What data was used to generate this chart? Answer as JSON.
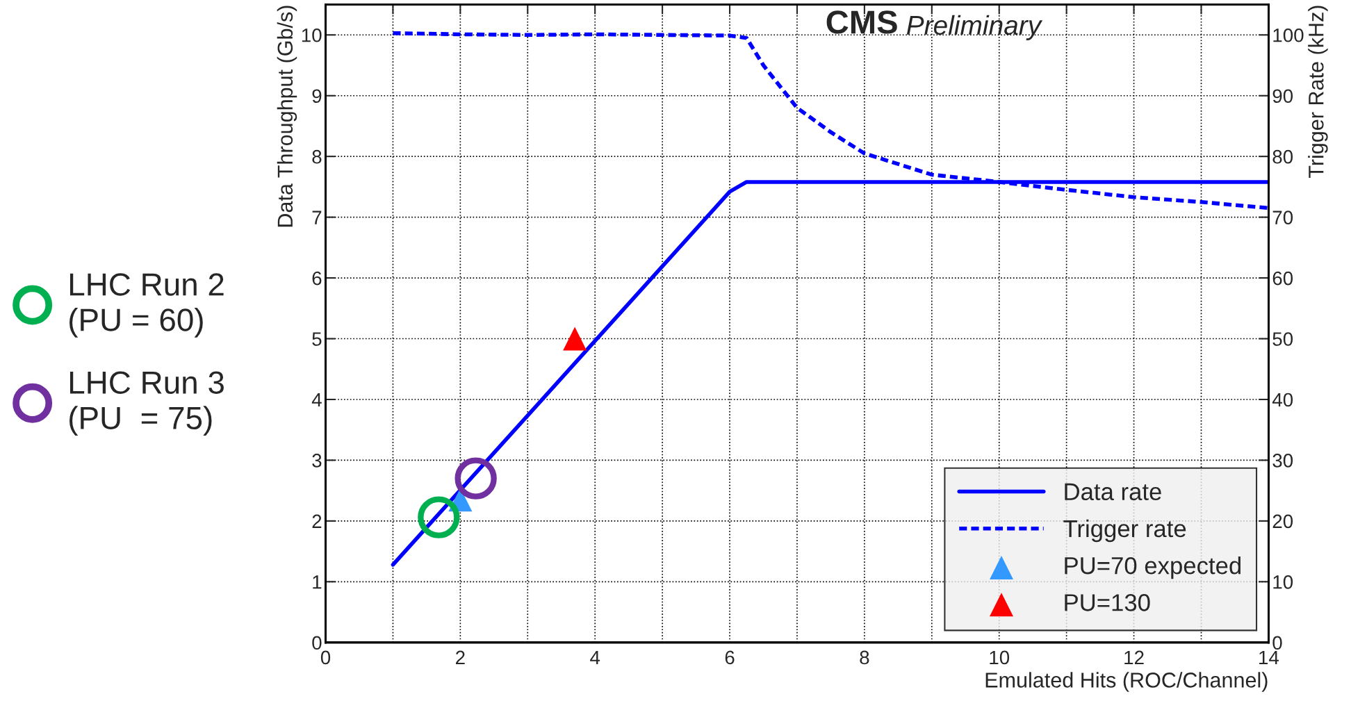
{
  "chart_data": {
    "type": "line",
    "title": "CMS",
    "subtitle": "Preliminary",
    "xlabel": "Emulated Hits (ROC/Channel)",
    "ylabel": "Data Throughput (Gb/s)",
    "y2label": "Trigger Rate (kHz)",
    "xlim": [
      0,
      14
    ],
    "xticks": [
      0,
      {
        "value": 1,
        "label": null
      },
      2,
      {
        "value": 3,
        "label": null
      },
      4,
      {
        "value": 5,
        "label": null
      },
      6,
      {
        "value": 7,
        "label": null
      },
      8,
      {
        "value": 9,
        "label": null
      },
      10,
      {
        "value": 11,
        "label": null
      },
      12,
      {
        "value": 13,
        "label": null
      },
      14
    ],
    "ylim": [
      0,
      10.5
    ],
    "yticks": [
      0,
      1,
      2,
      3,
      4,
      5,
      6,
      7,
      8,
      9,
      10
    ],
    "y2lim": [
      0,
      105
    ],
    "y2ticks": [
      0,
      10,
      20,
      30,
      40,
      50,
      60,
      70,
      80,
      90,
      100
    ],
    "grid": true,
    "legend": "bottom right",
    "series": [
      {
        "name": "Data rate",
        "type": "line",
        "color": "#0000ff",
        "line_style": "solid",
        "marker": "none",
        "x": [
          1,
          6,
          6.25,
          14
        ],
        "values": [
          1.28,
          7.42,
          7.58,
          7.58
        ]
      },
      {
        "name": "Trigger rate",
        "type": "line",
        "axis": "y2",
        "color": "#0000ff",
        "line_style": "dashed",
        "marker": "none",
        "x": [
          1,
          2,
          3,
          4,
          5,
          6,
          6.25,
          6.5,
          7,
          7.5,
          8,
          9,
          10,
          11,
          12,
          13,
          14
        ],
        "values": [
          100.3,
          100.1,
          100,
          100.1,
          100,
          99.9,
          99.5,
          95,
          88,
          84,
          80.5,
          77,
          75.8,
          74.5,
          73.3,
          72.5,
          71.5
        ]
      },
      {
        "name": "PU=70 expected",
        "type": "scatter",
        "color": "#3399ff",
        "marker": "triangle",
        "x": [
          2.0
        ],
        "values": [
          2.35
        ]
      },
      {
        "name": "PU=130",
        "type": "scatter",
        "color": "#ff0000",
        "marker": "triangle",
        "x": [
          3.7
        ],
        "values": [
          5.0
        ]
      },
      {
        "type": "scatter",
        "color": "#00b050",
        "marker": "circle",
        "x": [
          1.68
        ],
        "values": [
          2.06
        ]
      },
      {
        "type": "scatter",
        "color": "#7030a0",
        "marker": "circle",
        "x": [
          2.23
        ],
        "values": [
          2.7
        ]
      }
    ],
    "annotations": [
      "LHC Run 2\n(PU = 60)",
      "LHC Run 3\n(PU  = 75)"
    ]
  }
}
